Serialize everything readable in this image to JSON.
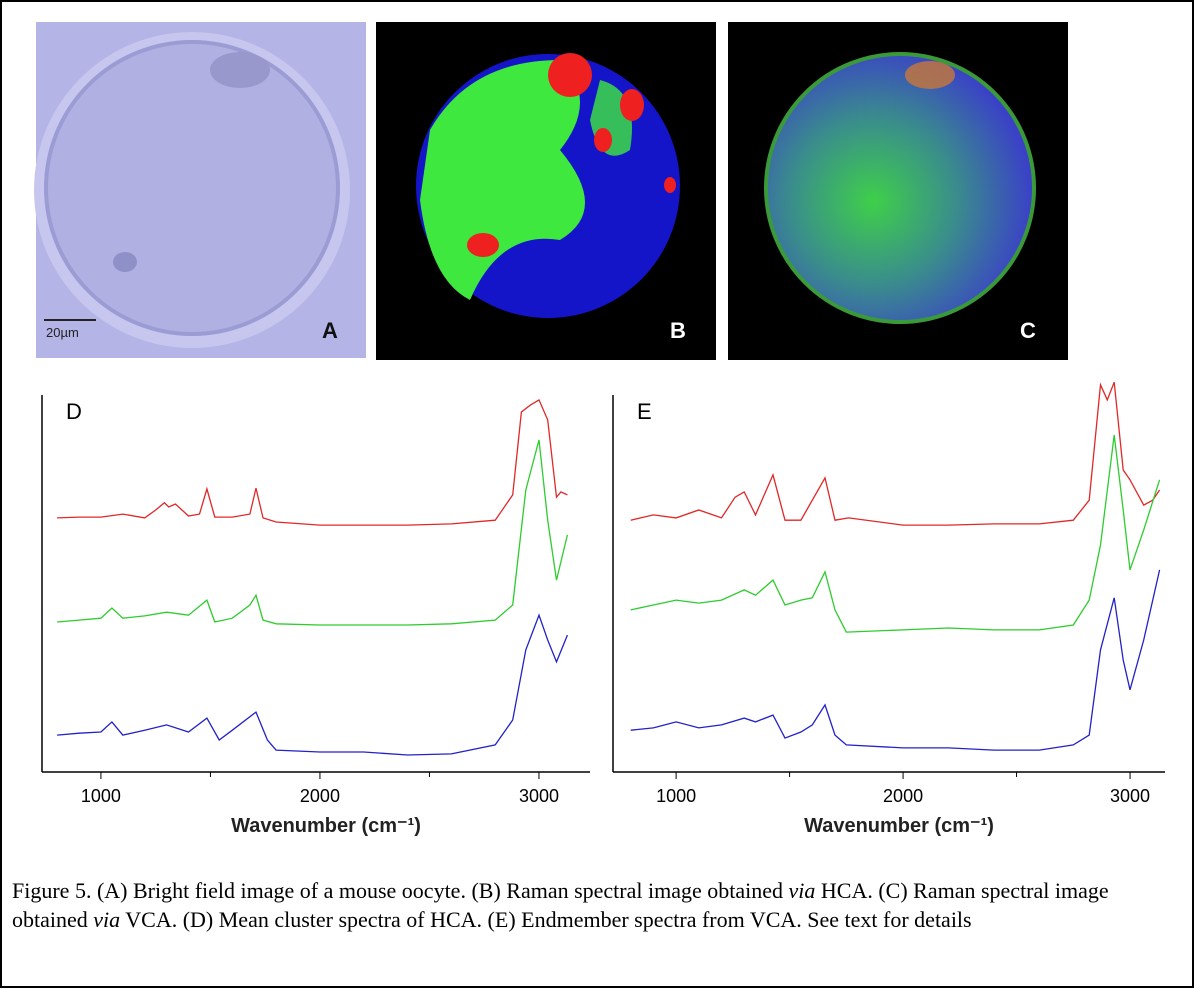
{
  "panels": {
    "A": {
      "label": "A",
      "scale_bar": "20µm"
    },
    "B": {
      "label": "B"
    },
    "C": {
      "label": "C"
    }
  },
  "chart_data": [
    {
      "type": "line",
      "panel_label": "D",
      "x_label": "Wavenumber (cm⁻¹)",
      "xlim": [
        731,
        3233
      ],
      "xticks": [
        1000,
        2000,
        3000
      ],
      "minor_xticks": [
        1500,
        2500
      ],
      "ylim": [
        0,
        100
      ],
      "series": [
        {
          "color": "#e02828",
          "x": [
            800,
            900,
            1000,
            1100,
            1200,
            1250,
            1290,
            1310,
            1340,
            1400,
            1450,
            1484,
            1520,
            1600,
            1680,
            1708,
            1740,
            1800,
            2000,
            2200,
            2400,
            2600,
            2800,
            2880,
            2920,
            2960,
            3000,
            3040,
            3080,
            3100,
            3130
          ],
          "values": [
            67.4,
            67.6,
            67.6,
            68.4,
            67.4,
            69.5,
            71.4,
            70.3,
            71.1,
            67.9,
            68.4,
            75.1,
            67.6,
            67.6,
            68.4,
            75.3,
            67.4,
            66.3,
            65.5,
            65.5,
            65.5,
            65.8,
            66.8,
            73.5,
            95.5,
            97.3,
            98.7,
            93.4,
            72.9,
            74.3,
            73.5
          ]
        },
        {
          "color": "#2ecc2e",
          "x": [
            800,
            900,
            1000,
            1050,
            1100,
            1200,
            1300,
            1400,
            1484,
            1520,
            1600,
            1680,
            1708,
            1740,
            1800,
            2000,
            2200,
            2400,
            2600,
            2800,
            2880,
            2940,
            3000,
            3040,
            3080,
            3130
          ],
          "values": [
            39.8,
            40.3,
            40.8,
            43.5,
            40.8,
            41.4,
            42.4,
            41.6,
            45.6,
            39.8,
            40.8,
            44.3,
            46.9,
            40.3,
            39.3,
            39.0,
            39.0,
            39.0,
            39.3,
            40.3,
            44.3,
            74.8,
            88.1,
            66.8,
            50.9,
            62.9
          ]
        },
        {
          "color": "#2222c8",
          "x": [
            800,
            900,
            1000,
            1050,
            1100,
            1200,
            1300,
            1400,
            1484,
            1540,
            1600,
            1708,
            1760,
            1800,
            2000,
            2200,
            2400,
            2600,
            2800,
            2880,
            2940,
            3000,
            3040,
            3080,
            3130
          ],
          "values": [
            9.8,
            10.3,
            10.6,
            13.3,
            9.8,
            11.1,
            12.5,
            10.6,
            14.3,
            8.5,
            11.1,
            15.9,
            8.5,
            5.8,
            5.3,
            5.3,
            4.5,
            4.8,
            7.2,
            13.8,
            32.4,
            41.6,
            35.0,
            29.2,
            36.3
          ]
        }
      ]
    },
    {
      "type": "line",
      "panel_label": "E",
      "x_label": "Wavenumber (cm⁻¹)",
      "xlim": [
        722,
        3154
      ],
      "xticks": [
        1000,
        2000,
        3000
      ],
      "minor_xticks": [
        1500,
        2500
      ],
      "ylim": [
        0,
        100
      ],
      "series": [
        {
          "color": "#e02828",
          "x": [
            800,
            900,
            1000,
            1100,
            1200,
            1260,
            1300,
            1350,
            1427,
            1480,
            1550,
            1656,
            1700,
            1760,
            2000,
            2200,
            2400,
            2600,
            2750,
            2820,
            2870,
            2900,
            2930,
            2970,
            3000,
            3060,
            3100,
            3130
          ],
          "values": [
            66.8,
            68.2,
            67.4,
            69.5,
            67.4,
            72.9,
            74.3,
            68.2,
            78.8,
            66.8,
            66.8,
            78.0,
            66.8,
            67.4,
            65.5,
            65.5,
            65.8,
            65.8,
            66.8,
            72.1,
            102.7,
            98.7,
            103.4,
            80.1,
            77.5,
            70.8,
            72.1,
            74.8
          ]
        },
        {
          "color": "#2ecc2e",
          "x": [
            800,
            900,
            1000,
            1100,
            1200,
            1300,
            1350,
            1427,
            1480,
            1550,
            1600,
            1656,
            1700,
            1750,
            2000,
            2200,
            2400,
            2600,
            2750,
            2820,
            2870,
            2930,
            2970,
            3000,
            3060,
            3130
          ],
          "values": [
            43.0,
            44.3,
            45.6,
            44.8,
            45.6,
            48.3,
            46.9,
            50.9,
            44.3,
            45.6,
            46.2,
            53.1,
            43.0,
            37.1,
            37.7,
            38.2,
            37.7,
            37.7,
            39.0,
            45.6,
            60.2,
            89.4,
            69.5,
            53.6,
            64.2,
            77.5
          ]
        },
        {
          "color": "#2222c8",
          "x": [
            800,
            900,
            1000,
            1100,
            1200,
            1300,
            1350,
            1427,
            1480,
            1550,
            1600,
            1656,
            1700,
            1750,
            2000,
            2200,
            2400,
            2600,
            2750,
            2820,
            2870,
            2930,
            2970,
            3000,
            3060,
            3130
          ],
          "values": [
            11.1,
            11.7,
            13.3,
            11.7,
            12.5,
            14.3,
            13.3,
            15.1,
            9.0,
            10.6,
            12.5,
            17.8,
            9.8,
            7.2,
            6.4,
            6.4,
            5.8,
            5.8,
            7.2,
            9.8,
            32.4,
            46.2,
            29.7,
            21.8,
            35.0,
            53.6
          ]
        }
      ]
    }
  ],
  "caption": [
    "Figure 5. (A) Bright field image of a mouse oocyte. (B) Raman spectral image obtained ",
    "via",
    " HCA. (C) Raman spectral image obtained ",
    "via",
    " VCA. (D) Mean cluster spectra of HCA. (E) Endmember spectra from VCA. See text for details"
  ]
}
